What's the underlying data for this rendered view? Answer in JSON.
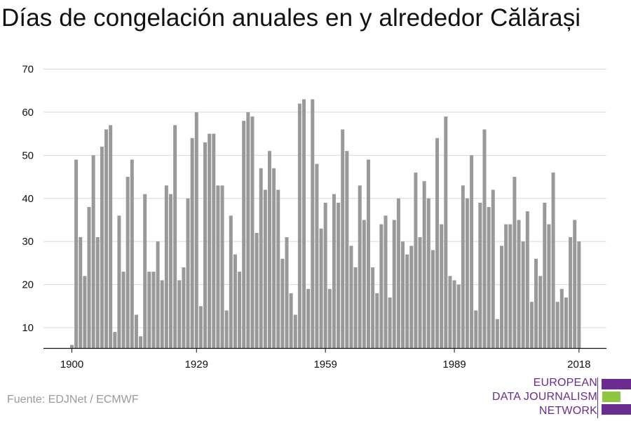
{
  "title": "Días de congelación anuales en y alrededor Călărași",
  "source": "Fuente: EDJNet / ECMWF",
  "logo": {
    "lines": [
      "EUROPEAN",
      "DATA JOURNALISM",
      "NETWORK"
    ],
    "colors": [
      "#6a2c8e",
      "#8dc63f",
      "#6a2c8e"
    ]
  },
  "chart_data": {
    "type": "bar",
    "title": "Días de congelación anuales en y alrededor Călărași",
    "xlabel": "",
    "ylabel": "",
    "ylim": [
      5,
      70
    ],
    "yticks": [
      10,
      20,
      30,
      40,
      50,
      60,
      70
    ],
    "xticks": [
      1900,
      1929,
      1959,
      1989,
      2018
    ],
    "grid": true,
    "bar_color": "#999999",
    "x": [
      1900,
      1901,
      1902,
      1903,
      1904,
      1905,
      1906,
      1907,
      1908,
      1909,
      1910,
      1911,
      1912,
      1913,
      1914,
      1915,
      1916,
      1917,
      1918,
      1919,
      1920,
      1921,
      1922,
      1923,
      1924,
      1925,
      1926,
      1927,
      1928,
      1929,
      1930,
      1931,
      1932,
      1933,
      1934,
      1935,
      1936,
      1937,
      1938,
      1939,
      1940,
      1941,
      1942,
      1943,
      1944,
      1945,
      1946,
      1947,
      1948,
      1949,
      1950,
      1951,
      1952,
      1953,
      1954,
      1955,
      1956,
      1957,
      1958,
      1959,
      1960,
      1961,
      1962,
      1963,
      1964,
      1965,
      1966,
      1967,
      1968,
      1969,
      1970,
      1971,
      1972,
      1973,
      1974,
      1975,
      1976,
      1977,
      1978,
      1979,
      1980,
      1981,
      1982,
      1983,
      1984,
      1985,
      1986,
      1987,
      1988,
      1989,
      1990,
      1991,
      1992,
      1993,
      1994,
      1995,
      1996,
      1997,
      1998,
      1999,
      2000,
      2001,
      2002,
      2003,
      2004,
      2005,
      2006,
      2007,
      2008,
      2009,
      2010,
      2011,
      2012,
      2013,
      2014,
      2015,
      2016,
      2017,
      2018
    ],
    "values": [
      6,
      49,
      31,
      22,
      38,
      50,
      31,
      52,
      56,
      57,
      9,
      36,
      23,
      45,
      49,
      13,
      8,
      41,
      23,
      23,
      30,
      21,
      43,
      41,
      57,
      21,
      24,
      40,
      54,
      60,
      15,
      53,
      55,
      55,
      43,
      43,
      14,
      36,
      27,
      23,
      58,
      60,
      59,
      32,
      47,
      42,
      51,
      47,
      42,
      26,
      31,
      18,
      13,
      62,
      63,
      19,
      63,
      48,
      33,
      39,
      19,
      41,
      39,
      56,
      51,
      29,
      24,
      43,
      35,
      49,
      24,
      18,
      34,
      36,
      17,
      35,
      40,
      30,
      27,
      29,
      46,
      31,
      44,
      40,
      28,
      54,
      34,
      59,
      22,
      21,
      20,
      43,
      40,
      50,
      14,
      39,
      56,
      38,
      42,
      12,
      29,
      34,
      34,
      45,
      35,
      30,
      37,
      16,
      26,
      22,
      39,
      34,
      46,
      16,
      19,
      17,
      31,
      35,
      30
    ]
  }
}
